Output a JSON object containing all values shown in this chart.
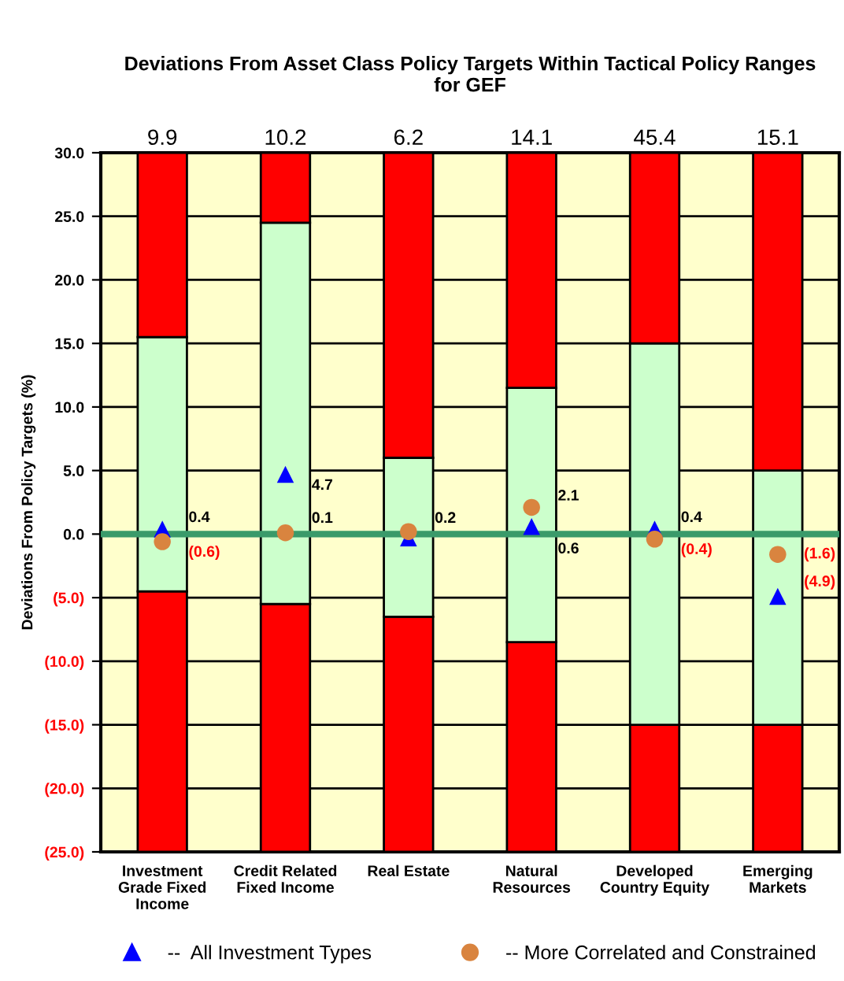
{
  "chart_data": {
    "type": "bar",
    "title": "Deviations From Asset Class Policy Targets Within Tactical Policy Ranges\nfor GEF",
    "ylabel": "Deviations From Policy Targets (%)",
    "categories": [
      "Investment\nGrade Fixed\nIncome",
      "Credit Related\nFixed Income",
      "Real Estate",
      "Natural\nResources",
      "Developed\nCountry Equity",
      "Emerging\nMarkets"
    ],
    "series": [
      {
        "color": "#ff0000",
        "base": [
          -25,
          -25,
          -25,
          -25,
          -25,
          -25
        ],
        "values": [
          20.5,
          19.5,
          18.5,
          16.5,
          10,
          10
        ]
      },
      {
        "color": "#ccffcc",
        "base": [
          -4.5,
          -5.5,
          -6.5,
          -8.5,
          -15,
          -15
        ],
        "values": [
          20,
          30,
          12.5,
          20,
          30,
          20
        ]
      },
      {
        "color": "#ff0000",
        "base": [
          15.5,
          24.5,
          6,
          11.5,
          15,
          5
        ],
        "values": [
          14.5,
          5.5,
          24,
          18.5,
          15,
          25
        ]
      },
      {
        "type": "scatter",
        "name": "--  All Investment Types",
        "color": "#0000ff",
        "marker": "triangle",
        "values": [
          0.4,
          4.7,
          -0.3,
          0.6,
          0.4,
          -4.9
        ],
        "value_labels": [
          "0.4",
          "4.7",
          null,
          "0.6",
          "0.4",
          "(4.9)"
        ]
      },
      {
        "type": "scatter",
        "name": "-- More Correlated and Constrained",
        "color": "#d9843f",
        "marker": "circle",
        "values": [
          -0.6,
          0.1,
          0.2,
          2.1,
          -0.4,
          -1.6
        ],
        "value_labels": [
          "(0.6)",
          "0.1",
          "0.2",
          "2.1",
          "(0.4)",
          "(1.6)"
        ]
      }
    ],
    "annotations": [
      "9.9",
      "10.2",
      "6.2",
      "14.1",
      "45.4",
      "15.1"
    ],
    "ylim": [
      -25,
      30
    ],
    "yticks": [
      {
        "value": -25,
        "label": "(25.0)"
      },
      {
        "value": -20,
        "label": "(20.0)"
      },
      {
        "value": -15,
        "label": "(15.0)"
      },
      {
        "value": -10,
        "label": "(10.0)"
      },
      {
        "value": -5,
        "label": "(5.0)"
      },
      {
        "value": 0,
        "label": "0.0"
      },
      {
        "value": 5,
        "label": "5.0"
      },
      {
        "value": 10,
        "label": "10.0"
      },
      {
        "value": 15,
        "label": "15.0"
      },
      {
        "value": 20,
        "label": "20.0"
      },
      {
        "value": 25,
        "label": "25.0"
      },
      {
        "value": 30,
        "label": "30.0"
      }
    ],
    "ref_lines": [
      {
        "axis": "y",
        "value": 0,
        "color": "#3a9a6a"
      }
    ],
    "grid": "y",
    "legend": "bottom"
  }
}
